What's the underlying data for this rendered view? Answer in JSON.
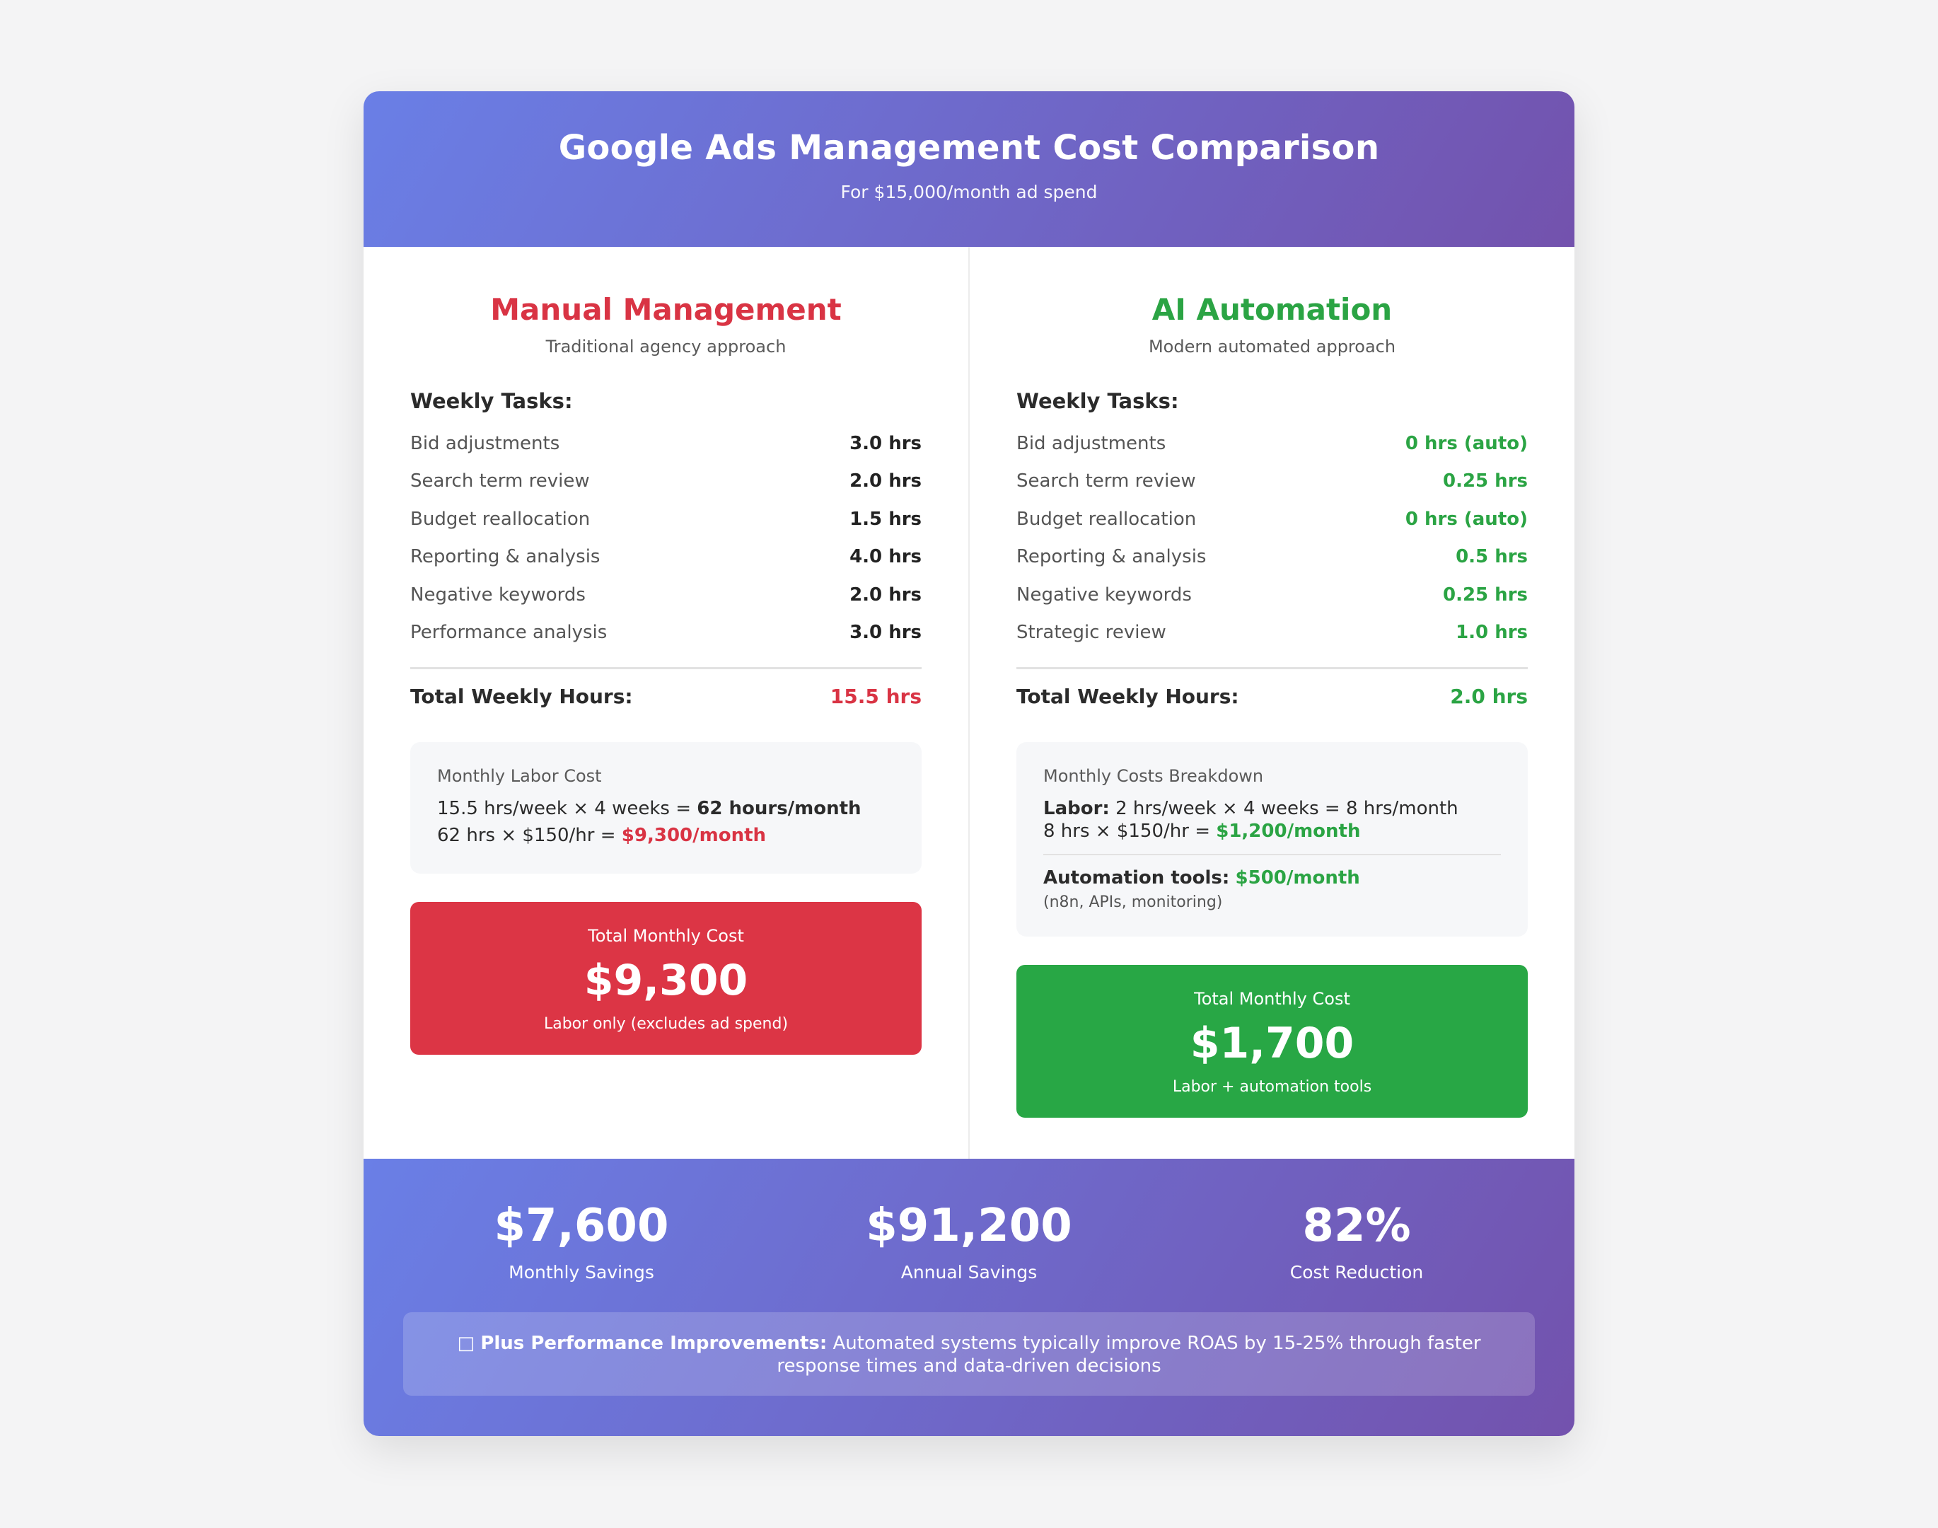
{
  "header": {
    "title": "Google Ads Management Cost Comparison",
    "subtitle": "For $15,000/month ad spend"
  },
  "manual": {
    "title": "Manual Management",
    "subtitle": "Traditional agency approach",
    "tasks_heading": "Weekly Tasks:",
    "tasks": [
      {
        "name": "Bid adjustments",
        "value": "3.0 hrs"
      },
      {
        "name": "Search term review",
        "value": "2.0 hrs"
      },
      {
        "name": "Budget reallocation",
        "value": "1.5 hrs"
      },
      {
        "name": "Reporting & analysis",
        "value": "4.0 hrs"
      },
      {
        "name": "Negative keywords",
        "value": "2.0 hrs"
      },
      {
        "name": "Performance analysis",
        "value": "3.0 hrs"
      }
    ],
    "total_label": "Total Weekly Hours:",
    "total_value": "15.5 hrs",
    "breakdown": {
      "title": "Monthly Labor Cost",
      "line1_prefix": "15.5 hrs/week × 4 weeks = ",
      "line1_bold": "62 hours/month",
      "line2_prefix": "62 hrs × $150/hr = ",
      "line2_value": "$9,300/month"
    },
    "total_box": {
      "label": "Total Monthly Cost",
      "amount": "$9,300",
      "note": "Labor only (excludes ad spend)"
    }
  },
  "ai": {
    "title": "AI Automation",
    "subtitle": "Modern automated approach",
    "tasks_heading": "Weekly Tasks:",
    "tasks": [
      {
        "name": "Bid adjustments",
        "value": "0 hrs (auto)"
      },
      {
        "name": "Search term review",
        "value": "0.25 hrs"
      },
      {
        "name": "Budget reallocation",
        "value": "0 hrs (auto)"
      },
      {
        "name": "Reporting & analysis",
        "value": "0.5 hrs"
      },
      {
        "name": "Negative keywords",
        "value": "0.25 hrs"
      },
      {
        "name": "Strategic review",
        "value": "1.0 hrs"
      }
    ],
    "total_label": "Total Weekly Hours:",
    "total_value": "2.0 hrs",
    "breakdown": {
      "title": "Monthly Costs Breakdown",
      "labor_label": "Labor:",
      "labor_line1": " 2 hrs/week × 4 weeks = 8 hrs/month",
      "labor_line2_prefix": "8 hrs × $150/hr = ",
      "labor_line2_value": "$1,200/month",
      "tools_label": "Automation tools:",
      "tools_value": "$500/month",
      "tools_note": "(n8n, APIs, monitoring)"
    },
    "total_box": {
      "label": "Total Monthly Cost",
      "amount": "$1,700",
      "note": "Labor + automation tools"
    }
  },
  "footer": {
    "stats": [
      {
        "value": "$7,600",
        "label": "Monthly Savings"
      },
      {
        "value": "$91,200",
        "label": "Annual Savings"
      },
      {
        "value": "82%",
        "label": "Cost Reduction"
      }
    ],
    "perf_icon": "□",
    "perf_bold": "Plus Performance Improvements:",
    "perf_text": " Automated systems typically improve ROAS by 15-25% through faster response times and data-driven decisions"
  }
}
